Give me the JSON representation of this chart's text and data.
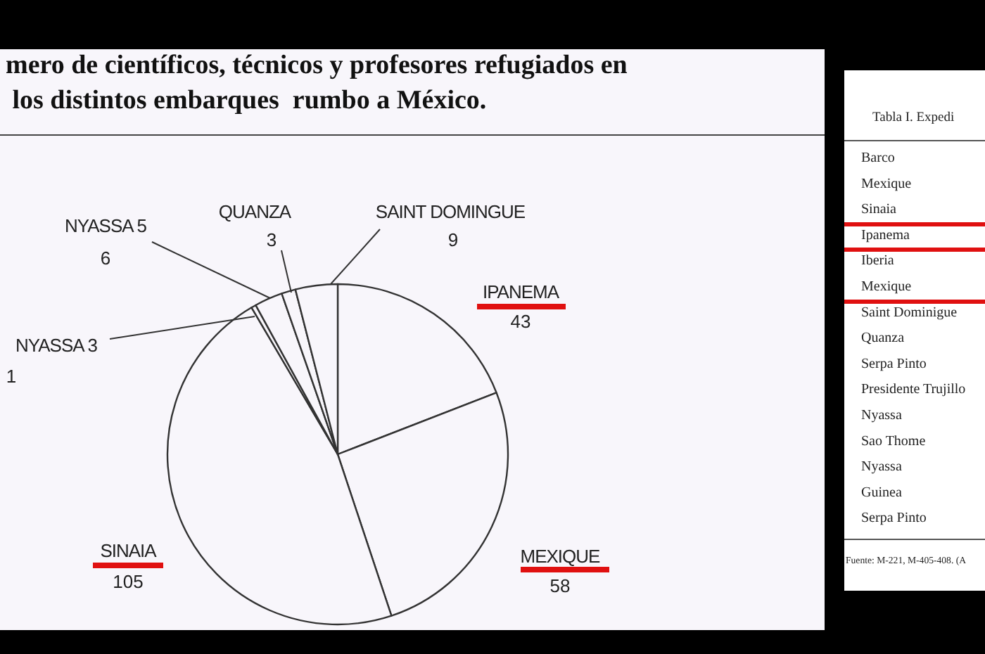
{
  "chart_data": {
    "type": "pie",
    "title": "mero de científicos, técnicos y profesores refugiados en\n los distintos embarques  rumbo a México.",
    "categories": [
      "IPANEMA",
      "MEXIQUE",
      "SINAIA",
      "NYASSA 3",
      "NYASSA 5",
      "QUANZA",
      "SAINT DOMINGUE"
    ],
    "values": [
      43,
      58,
      105,
      1,
      6,
      3,
      9
    ],
    "colors": [
      "#f8f6fb",
      "#f8f6fb",
      "#f8f6fb",
      "#f8f6fb",
      "#f8f6fb",
      "#f8f6fb",
      "#f8f6fb"
    ],
    "data_labels": true,
    "annotations": [
      "Tabla I. Expedi",
      "Barco",
      "Mexique",
      "Sinaia",
      "Ipanema",
      "Iberia",
      "Mexique",
      "Saint Dominigue",
      "Quanza",
      "Serpa Pinto",
      "Presidente Trujillo",
      "Nyassa",
      "Sao Thome",
      "Nyassa",
      "Guinea",
      "Serpa Pinto",
      "Fuente: M-221, M-405-408. (A"
    ]
  }
}
